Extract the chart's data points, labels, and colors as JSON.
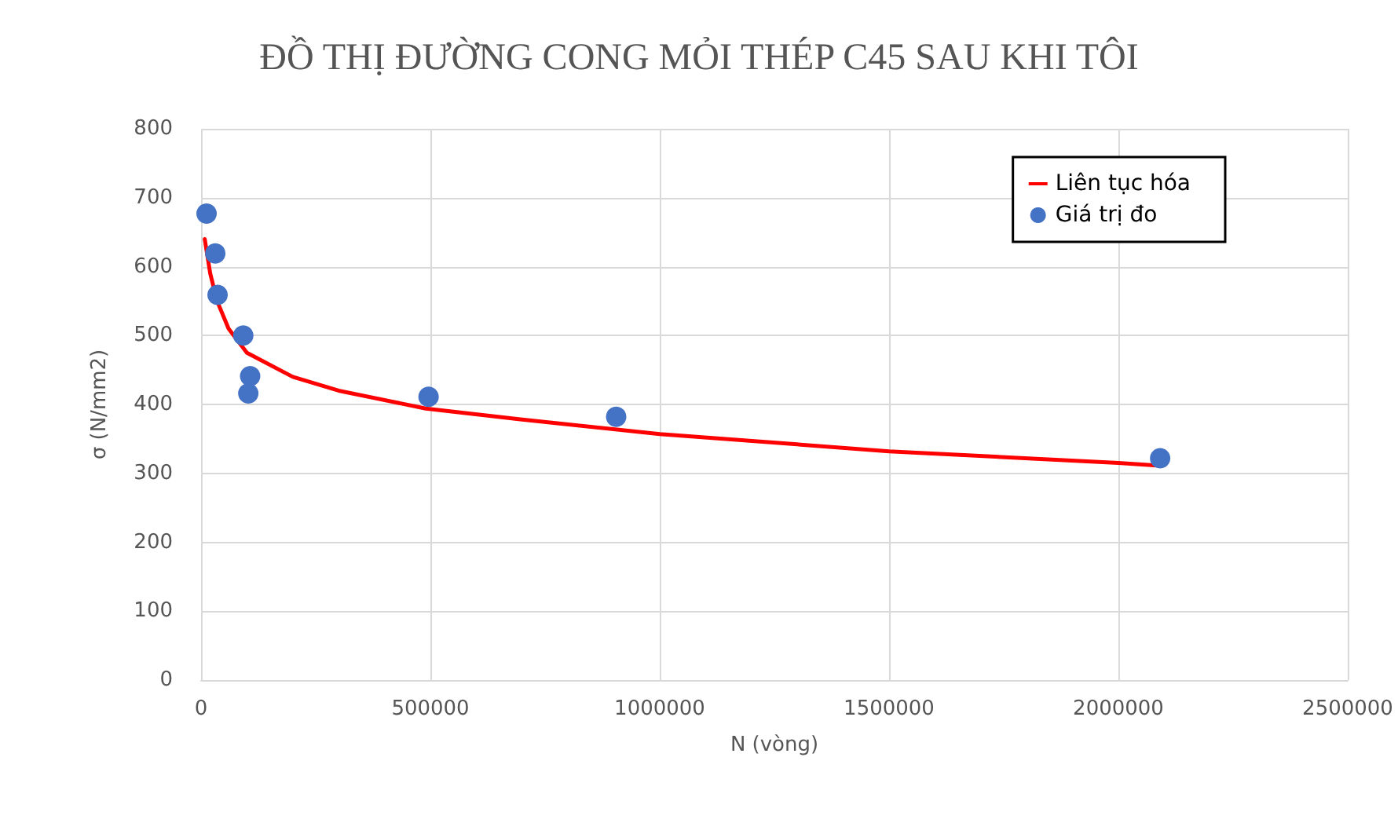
{
  "chart_data": {
    "type": "scatter",
    "title": "ĐỒ THỊ ĐƯỜNG CONG MỎI THÉP C45 SAU KHI TÔI",
    "xlabel": "N (vòng)",
    "ylabel": "σ (N/mm2)",
    "series": [
      {
        "name": "Liên tục hóa",
        "type": "line",
        "color": "#ff0000",
        "marker": "none",
        "line_style": "solid",
        "x": [
          8000,
          20000,
          35000,
          60000,
          100000,
          200000,
          300000,
          490000,
          700000,
          1000000,
          1500000,
          2000000,
          2090000
        ],
        "values": [
          640,
          590,
          550,
          510,
          475,
          440,
          420,
          394,
          378,
          357,
          332,
          315,
          311
        ]
      },
      {
        "name": "Giá trị đo",
        "color": "#4472c4",
        "marker": "circle",
        "x": [
          12000,
          31000,
          36000,
          92000,
          103000,
          107000,
          496000,
          905000,
          2091000
        ],
        "values": [
          677,
          619,
          559,
          500,
          416,
          441,
          411,
          382,
          322
        ]
      }
    ],
    "xlim": [
      0,
      2500000
    ],
    "xticks": [
      0,
      500000,
      1000000,
      1500000,
      2000000,
      2500000
    ],
    "ylim": [
      0,
      800
    ],
    "yticks": [
      0,
      100,
      200,
      300,
      400,
      500,
      600,
      700,
      800
    ],
    "grid": true,
    "legend": "top right"
  }
}
